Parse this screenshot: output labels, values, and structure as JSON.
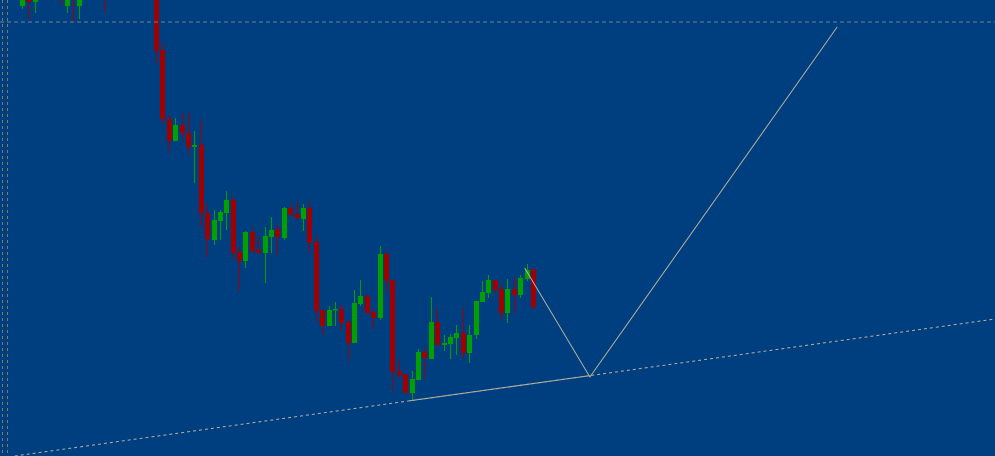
{
  "chart_data": {
    "type": "candlestick",
    "title": "",
    "xlabel": "",
    "ylabel": "",
    "grid": false,
    "ylim": [
      0,
      456
    ],
    "colors": {
      "background": "#003f7f",
      "bull": "#00a000",
      "bear": "#a00000",
      "drawing": "#b8b09a",
      "level": "#6f7f8f",
      "separator": "#8a7a5a"
    },
    "candles_columns": [
      "bar",
      "open",
      "high",
      "low",
      "close"
    ],
    "candles": [
      [
        -21,
        450,
        470,
        447,
        462
      ],
      [
        -20,
        465,
        470,
        437,
        454
      ],
      [
        -19,
        454,
        466,
        443,
        462
      ],
      [
        -15,
        466,
        470,
        451,
        460
      ],
      [
        -14,
        450,
        470,
        443,
        462
      ],
      [
        -13,
        466,
        470,
        433,
        460
      ],
      [
        -12,
        450,
        470,
        437,
        462
      ],
      [
        -8,
        466,
        470,
        444,
        460
      ],
      [
        0,
        466,
        476,
        393,
        405
      ],
      [
        1,
        406,
        413,
        332,
        337
      ],
      [
        2,
        337,
        341,
        303,
        315
      ],
      [
        3,
        315,
        338,
        315,
        331
      ],
      [
        4,
        331,
        343,
        316,
        323
      ],
      [
        5,
        323,
        343,
        301,
        309
      ],
      [
        6,
        309,
        325,
        273,
        311
      ],
      [
        7,
        311,
        336,
        229,
        243
      ],
      [
        8,
        243,
        252,
        199,
        217
      ],
      [
        9,
        216,
        246,
        211,
        236
      ],
      [
        10,
        235,
        246,
        216,
        244
      ],
      [
        11,
        243,
        265,
        226,
        256
      ],
      [
        12,
        256,
        260,
        198,
        203
      ],
      [
        13,
        204,
        209,
        165,
        195
      ],
      [
        14,
        195,
        225,
        188,
        224
      ],
      [
        15,
        224,
        229,
        203,
        205
      ],
      [
        16,
        206,
        219,
        203,
        203
      ],
      [
        17,
        203,
        229,
        173,
        220
      ],
      [
        18,
        219,
        239,
        203,
        226
      ],
      [
        19,
        227,
        231,
        201,
        219
      ],
      [
        20,
        218,
        249,
        216,
        248
      ],
      [
        21,
        248,
        252,
        241,
        241
      ],
      [
        22,
        242,
        254,
        235,
        238
      ],
      [
        23,
        237,
        252,
        225,
        248
      ],
      [
        24,
        248,
        255,
        203,
        213
      ],
      [
        25,
        214,
        220,
        134,
        145
      ],
      [
        26,
        146,
        146,
        121,
        130
      ],
      [
        27,
        130,
        150,
        130,
        146
      ],
      [
        28,
        147,
        154,
        130,
        147
      ],
      [
        29,
        147,
        152,
        125,
        133
      ],
      [
        30,
        134,
        136,
        95,
        113
      ],
      [
        31,
        113,
        166,
        113,
        153
      ],
      [
        32,
        152,
        176,
        150,
        160
      ],
      [
        33,
        160,
        162,
        143,
        143
      ],
      [
        34,
        144,
        147,
        127,
        138
      ],
      [
        35,
        138,
        210,
        136,
        202
      ],
      [
        36,
        202,
        205,
        164,
        175
      ],
      [
        37,
        176,
        176,
        65,
        84
      ],
      [
        38,
        85,
        96,
        78,
        81
      ],
      [
        39,
        82,
        82,
        63,
        63
      ],
      [
        40,
        63,
        85,
        55,
        77
      ],
      [
        41,
        76,
        107,
        76,
        104
      ],
      [
        42,
        104,
        109,
        78,
        98
      ],
      [
        43,
        97,
        159,
        97,
        134
      ],
      [
        44,
        134,
        148,
        111,
        111
      ],
      [
        45,
        111,
        121,
        105,
        113
      ],
      [
        46,
        112,
        122,
        97,
        119
      ],
      [
        47,
        118,
        131,
        101,
        123
      ],
      [
        48,
        123,
        148,
        97,
        103
      ],
      [
        49,
        103,
        131,
        93,
        121
      ],
      [
        50,
        121,
        155,
        117,
        155
      ],
      [
        51,
        154,
        175,
        154,
        164
      ],
      [
        52,
        163,
        181,
        158,
        176
      ],
      [
        53,
        176,
        176,
        163,
        166
      ],
      [
        54,
        167,
        172,
        137,
        143
      ],
      [
        55,
        143,
        177,
        133,
        167
      ],
      [
        56,
        167,
        179,
        143,
        161
      ],
      [
        57,
        161,
        181,
        158,
        178
      ],
      [
        58,
        177,
        192,
        175,
        186
      ],
      [
        59,
        187,
        187,
        146,
        149
      ]
    ],
    "drawings": {
      "horizontal_level": 434,
      "trendline": {
        "from": [
          -22.1,
          0
        ],
        "to": [
          131.3,
          137
        ],
        "solid_from": 39.6,
        "solid_to": 67.9
      },
      "zigzag": [
        [
          57.7,
          188
        ],
        [
          67.9,
          79
        ],
        [
          106.6,
          429
        ]
      ]
    }
  }
}
